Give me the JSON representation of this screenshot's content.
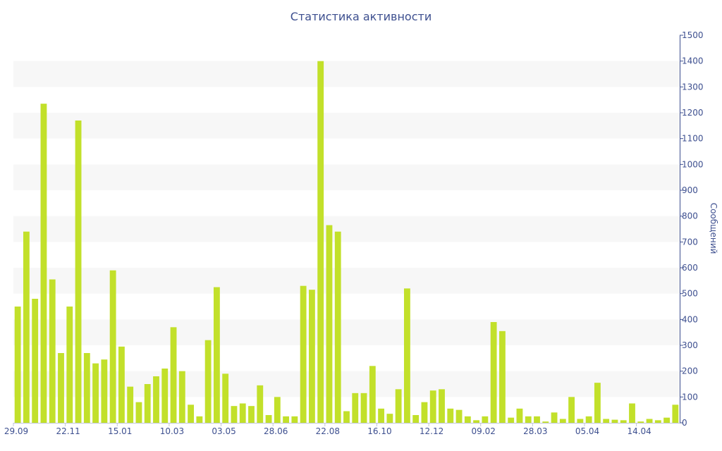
{
  "chart_data": {
    "type": "bar",
    "title": "Статистика активности",
    "ylabel": "Сообщений",
    "xlabel": "",
    "ylim": [
      0,
      1500
    ],
    "y_ticks": [
      0,
      100,
      200,
      300,
      400,
      500,
      600,
      700,
      800,
      900,
      1000,
      1100,
      1200,
      1300,
      1400,
      1500
    ],
    "y_axis_side": "right",
    "x_tick_labels": [
      "29.09",
      "22.11",
      "15.01",
      "10.03",
      "03.05",
      "28.06",
      "22.08",
      "16.10",
      "12.12",
      "09.02",
      "28.03",
      "05.04",
      "14.04"
    ],
    "x_tick_label_after_bar": [
      0,
      6,
      12,
      18,
      24,
      30,
      36,
      42,
      48,
      54,
      60,
      66,
      72
    ],
    "grid": "alternating horizontal bands",
    "legend": "none",
    "bar_color": "#c2e02a",
    "values": [
      450,
      740,
      480,
      1235,
      555,
      270,
      450,
      1170,
      270,
      230,
      245,
      590,
      295,
      140,
      80,
      150,
      180,
      210,
      370,
      200,
      70,
      25,
      320,
      525,
      190,
      65,
      75,
      65,
      145,
      30,
      100,
      25,
      25,
      530,
      515,
      1400,
      765,
      740,
      45,
      115,
      115,
      220,
      55,
      35,
      130,
      520,
      30,
      80,
      125,
      130,
      55,
      50,
      25,
      10,
      25,
      390,
      355,
      20,
      55,
      25,
      25,
      5,
      40,
      15,
      100,
      15,
      25,
      155,
      15,
      12,
      10,
      75,
      5,
      15,
      10,
      20,
      70
    ]
  }
}
